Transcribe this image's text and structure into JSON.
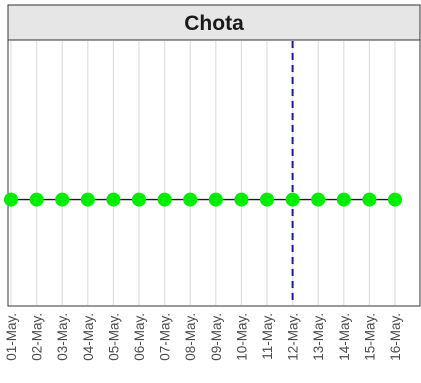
{
  "chart_data": {
    "type": "line",
    "title": "Chota",
    "xlabel": "",
    "ylabel": "",
    "x": [
      "01-May.",
      "02-May.",
      "03-May.",
      "04-May.",
      "05-May.",
      "06-May.",
      "07-May.",
      "08-May.",
      "09-May.",
      "10-May.",
      "11-May.",
      "12-May.",
      "13-May.",
      "14-May.",
      "15-May.",
      "16-May."
    ],
    "series": [
      {
        "values": [
          0,
          0,
          0,
          0,
          0,
          0,
          0,
          0,
          0,
          0,
          0,
          0,
          0,
          0,
          0,
          0
        ]
      }
    ],
    "ylim": [
      -1,
      1.5
    ],
    "reference_line": {
      "x": "12-May.",
      "style": "dashed"
    },
    "grid": true,
    "legend": "none",
    "colors": {
      "point": "#00ee00",
      "line": "#1a1a1a",
      "reference": "#1a1aa0",
      "grid": "#e0e0e0",
      "strip": "#e6e6e6"
    }
  }
}
